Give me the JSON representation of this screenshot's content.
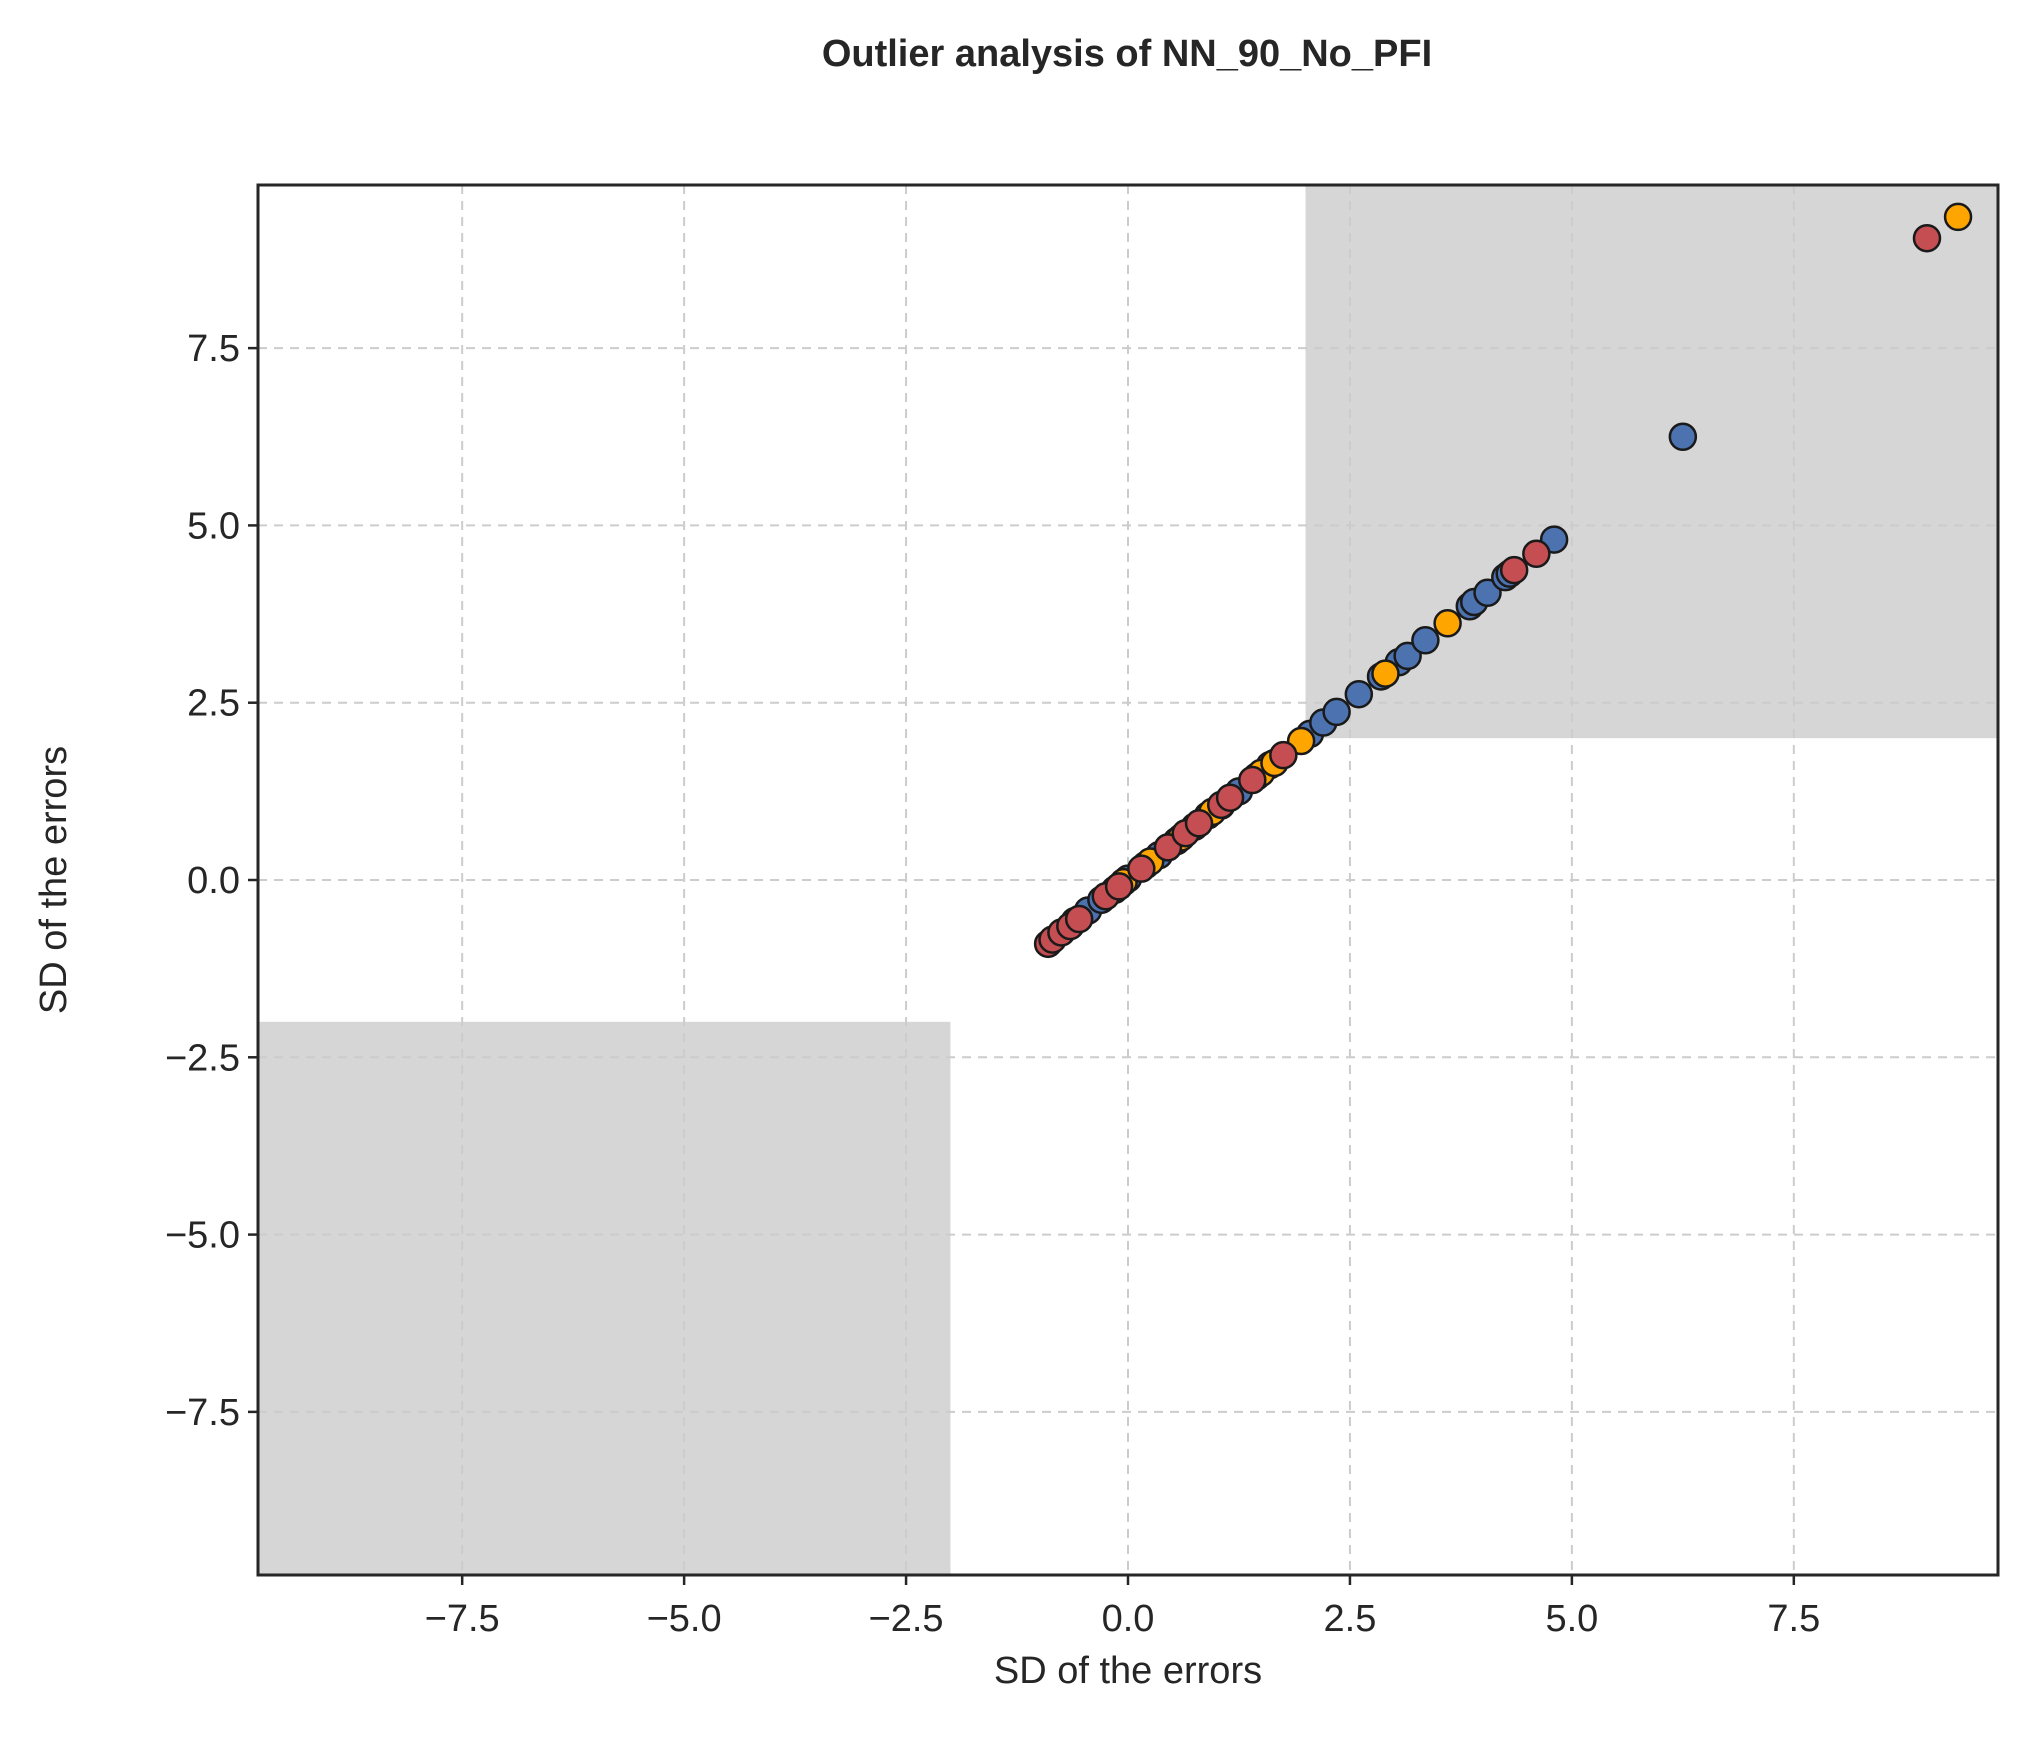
{
  "chart_data": {
    "type": "scatter",
    "title": "Outlier analysis of NN_90_No_PFI",
    "xlabel": "SD of the errors",
    "ylabel": "SD of the errors",
    "xlim": [
      -9.8,
      9.8
    ],
    "ylim": [
      -9.8,
      9.8
    ],
    "xticks": [
      -7.5,
      -5.0,
      -2.5,
      0.0,
      2.5,
      5.0,
      7.5
    ],
    "yticks": [
      -7.5,
      -5.0,
      -2.5,
      0.0,
      2.5,
      5.0,
      7.5
    ],
    "xtick_labels": [
      "−7.5",
      "−5.0",
      "−2.5",
      "0.0",
      "2.5",
      "5.0",
      "7.5"
    ],
    "ytick_labels": [
      "−7.5",
      "−5.0",
      "−2.5",
      "0.0",
      "2.5",
      "5.0",
      "7.5"
    ],
    "grid": true,
    "shaded_regions": [
      {
        "x": [
          2.0,
          9.8
        ],
        "y": [
          2.0,
          9.8
        ],
        "color": "#d6d6d6"
      },
      {
        "x": [
          -9.8,
          -2.0
        ],
        "y": [
          -9.8,
          -2.0
        ],
        "color": "#d6d6d6"
      }
    ],
    "series": [
      {
        "color": "#4c72b0",
        "points": [
          [
            -0.45,
            -0.43
          ],
          [
            -0.3,
            -0.28
          ],
          [
            -0.15,
            -0.14
          ],
          [
            0.0,
            0.02
          ],
          [
            0.2,
            0.21
          ],
          [
            0.35,
            0.35
          ],
          [
            0.55,
            0.55
          ],
          [
            0.75,
            0.75
          ],
          [
            0.9,
            0.91
          ],
          [
            1.05,
            1.05
          ],
          [
            1.25,
            1.25
          ],
          [
            1.45,
            1.46
          ],
          [
            1.6,
            1.62
          ],
          [
            2.05,
            2.06
          ],
          [
            2.2,
            2.22
          ],
          [
            2.35,
            2.37
          ],
          [
            2.6,
            2.62
          ],
          [
            2.85,
            2.87
          ],
          [
            3.05,
            3.07
          ],
          [
            3.15,
            3.16
          ],
          [
            3.35,
            3.38
          ],
          [
            3.85,
            3.86
          ],
          [
            3.9,
            3.92
          ],
          [
            4.05,
            4.05
          ],
          [
            4.25,
            4.27
          ],
          [
            4.3,
            4.32
          ],
          [
            4.8,
            4.8
          ],
          [
            6.25,
            6.25
          ]
        ]
      },
      {
        "color": "#ffa500",
        "points": [
          [
            -0.6,
            -0.58
          ],
          [
            -0.05,
            -0.03
          ],
          [
            0.25,
            0.26
          ],
          [
            0.6,
            0.6
          ],
          [
            0.95,
            0.96
          ],
          [
            1.5,
            1.51
          ],
          [
            1.65,
            1.65
          ],
          [
            1.95,
            1.96
          ],
          [
            2.9,
            2.91
          ],
          [
            3.6,
            3.62
          ],
          [
            9.35,
            9.35
          ]
        ]
      },
      {
        "color": "#c44e52",
        "points": [
          [
            -0.9,
            -0.9
          ],
          [
            -0.85,
            -0.84
          ],
          [
            -0.75,
            -0.74
          ],
          [
            -0.65,
            -0.65
          ],
          [
            -0.55,
            -0.55
          ],
          [
            -0.25,
            -0.23
          ],
          [
            -0.1,
            -0.09
          ],
          [
            0.15,
            0.16
          ],
          [
            0.45,
            0.46
          ],
          [
            0.65,
            0.66
          ],
          [
            0.8,
            0.8
          ],
          [
            1.05,
            1.06
          ],
          [
            1.15,
            1.16
          ],
          [
            1.4,
            1.41
          ],
          [
            1.75,
            1.76
          ],
          [
            4.35,
            4.37
          ],
          [
            4.6,
            4.6
          ],
          [
            9.0,
            9.05
          ]
        ]
      }
    ]
  }
}
